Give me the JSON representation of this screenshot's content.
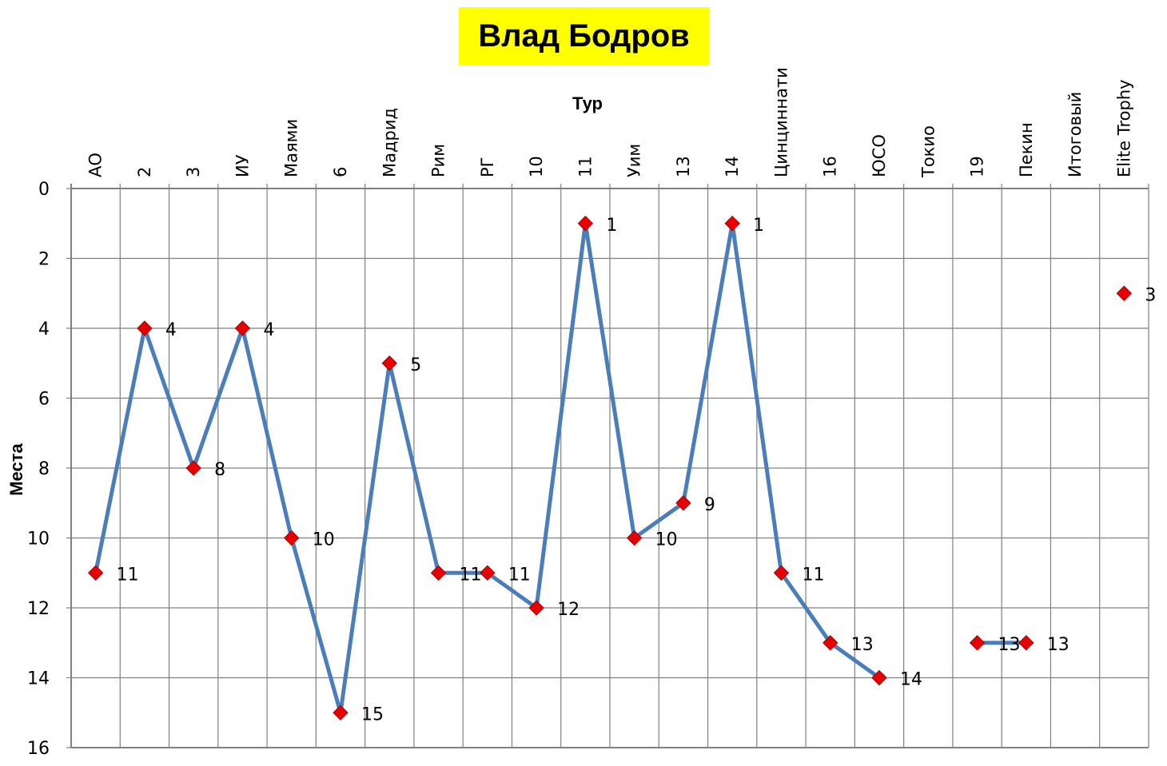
{
  "chart_data": {
    "type": "line",
    "title": "Влад Бодров",
    "xlabel": "Тур",
    "ylabel": "Места",
    "categories": [
      "АО",
      "2",
      "3",
      "ИУ",
      "Маями",
      "6",
      "Мадрид",
      "Рим",
      "РГ",
      "10",
      "11",
      "Уим",
      "13",
      "14",
      "Цинциннати",
      "16",
      "ЮСО",
      "Токио",
      "19",
      "Пекин",
      "Итоговый",
      "Elite Trophy"
    ],
    "series": [
      {
        "values": [
          11,
          4,
          8,
          4,
          10,
          15,
          5,
          11,
          11,
          12,
          1,
          10,
          9,
          1,
          11,
          13,
          14,
          null,
          13,
          13,
          null,
          3
        ]
      }
    ],
    "ylim": [
      0,
      16
    ],
    "yticks": [
      0,
      2,
      4,
      6,
      8,
      10,
      12,
      14,
      16
    ],
    "y_inverted": true,
    "x_axis_position": "top",
    "grid": true,
    "line_color": "#4a7ebb",
    "marker_color": "#e60000",
    "marker": "diamond",
    "data_labels": true
  }
}
